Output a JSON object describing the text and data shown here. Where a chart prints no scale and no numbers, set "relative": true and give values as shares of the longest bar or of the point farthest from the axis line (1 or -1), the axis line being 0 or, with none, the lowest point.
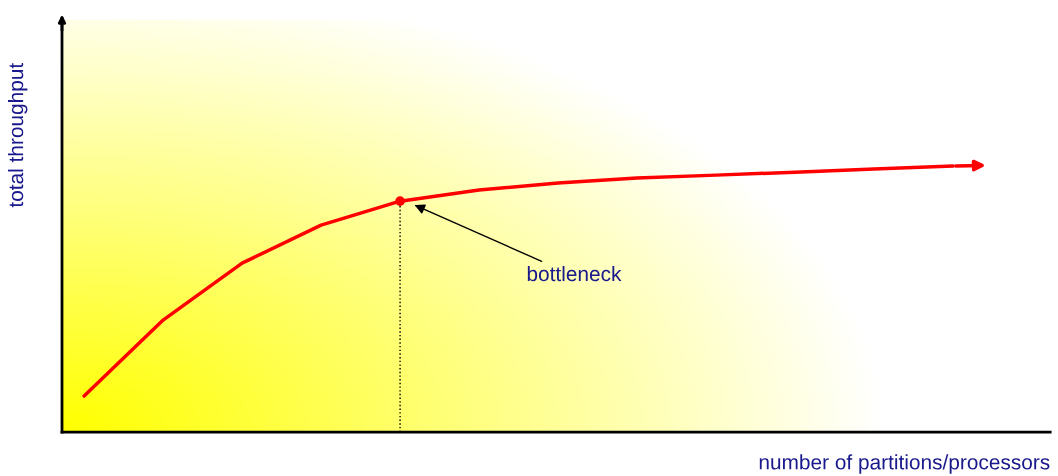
{
  "chart_data": {
    "type": "line",
    "relative": true,
    "xlabel": "number of partitions/processors",
    "ylabel": "total throughput",
    "categories": [
      null,
      null,
      null,
      null,
      null,
      null,
      null,
      null,
      null,
      null,
      null,
      null
    ],
    "series": [
      {
        "color": "#ff0000",
        "values": [
          0.135,
          0.421,
          0.635,
          0.778,
          0.868,
          0.91,
          0.936,
          0.955,
          0.966,
          0.977,
          0.989,
          1.0
        ]
      }
    ],
    "annotations": [
      "bottleneck"
    ],
    "marker": "none",
    "line_style": "solid",
    "legend": false
  }
}
